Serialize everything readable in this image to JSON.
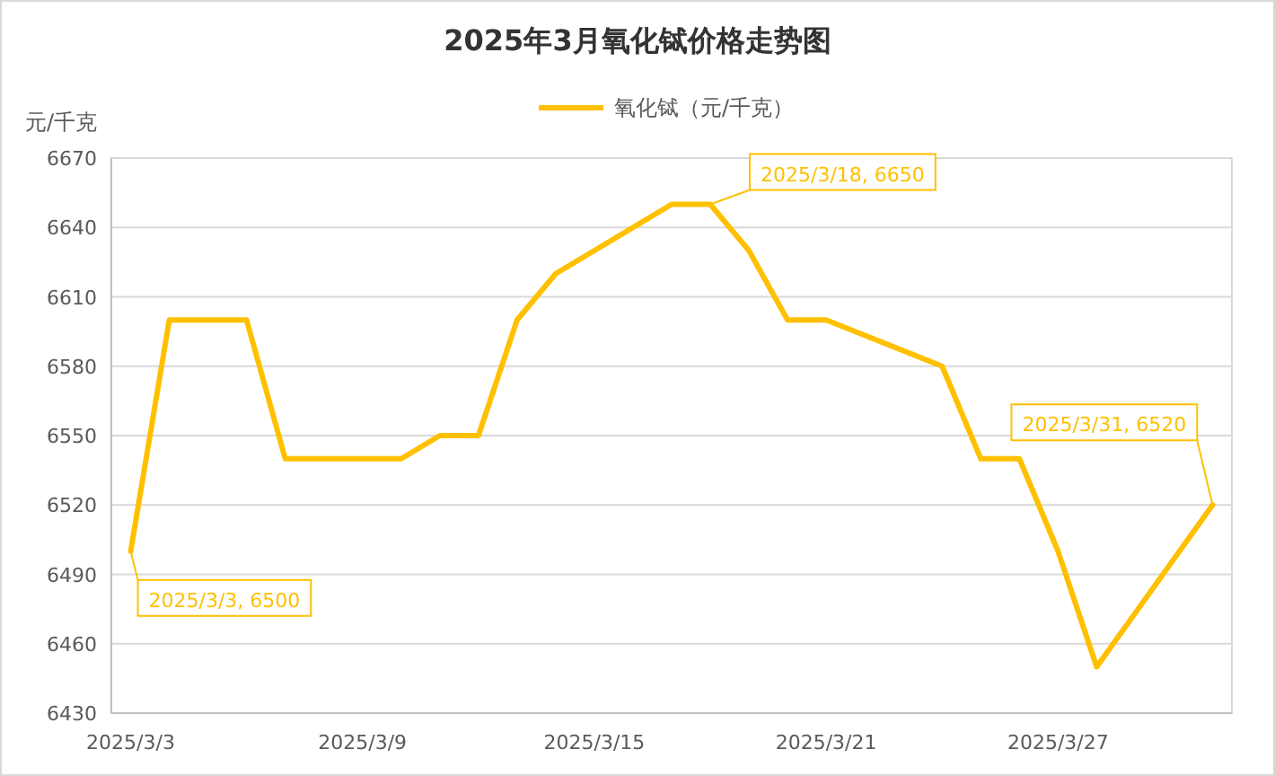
{
  "chart_data": {
    "type": "line",
    "title": "2025年3月氧化铽价格走势图",
    "ylabel": "元/千克",
    "x": [
      "2025-03-03",
      "2025-03-04",
      "2025-03-05",
      "2025-03-06",
      "2025-03-07",
      "2025-03-10",
      "2025-03-11",
      "2025-03-12",
      "2025-03-13",
      "2025-03-14",
      "2025-03-17",
      "2025-03-18",
      "2025-03-19",
      "2025-03-20",
      "2025-03-21",
      "2025-03-24",
      "2025-03-25",
      "2025-03-26",
      "2025-03-27",
      "2025-03-28",
      "2025-03-31"
    ],
    "series": [
      {
        "name": "氧化铽（元/千克）",
        "color": "#ffc000",
        "values": [
          6500,
          6600,
          6600,
          6600,
          6540,
          6540,
          6550,
          6550,
          6600,
          6620,
          6650,
          6650,
          6630,
          6600,
          6600,
          6580,
          6540,
          6540,
          6500,
          6450,
          6520
        ]
      }
    ],
    "xlim": [
      "2025-03-02T12:00",
      "2025-03-31T12:00"
    ],
    "xticks": [
      {
        "value": "2025-03-03",
        "label": "2025/3/3"
      },
      {
        "value": "2025-03-09",
        "label": "2025/3/9"
      },
      {
        "value": "2025-03-15",
        "label": "2025/3/15"
      },
      {
        "value": "2025-03-21",
        "label": "2025/3/21"
      },
      {
        "value": "2025-03-27",
        "label": "2025/3/27"
      }
    ],
    "ylim": [
      6430,
      6670
    ],
    "yticks": [
      6430,
      6460,
      6490,
      6520,
      6550,
      6580,
      6610,
      6640,
      6670
    ],
    "grid": "y",
    "legend": "top",
    "marker": "none",
    "line_style": "solid",
    "annotations": [
      {
        "text": "2025/3/3, 6500",
        "x": "2025-03-03",
        "y": 6500
      },
      {
        "text": "2025/3/18, 6650",
        "x": "2025-03-18",
        "y": 6650
      },
      {
        "text": "2025/3/31, 6520",
        "x": "2025-03-31",
        "y": 6520
      }
    ]
  }
}
